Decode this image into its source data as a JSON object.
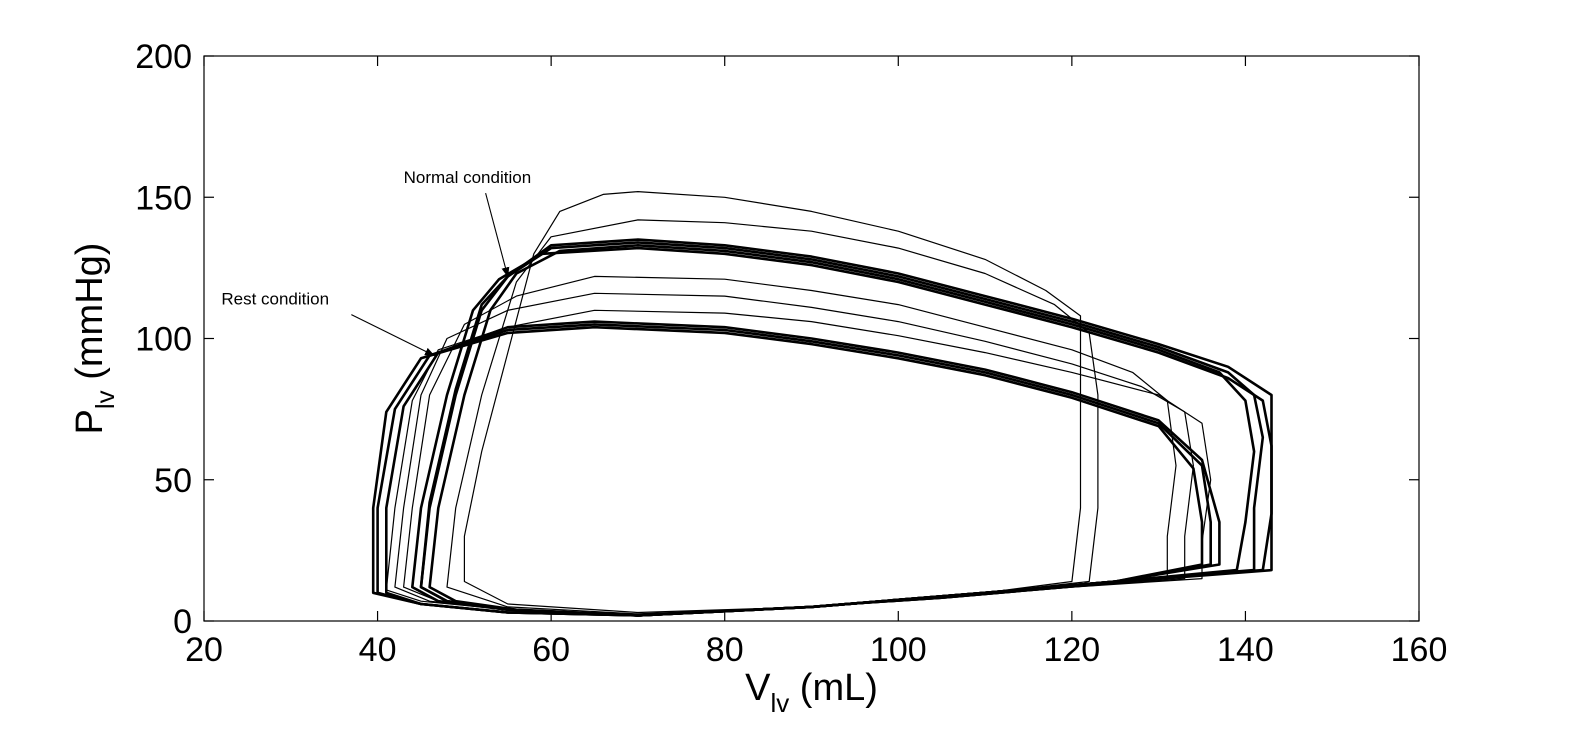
{
  "chart_data": {
    "type": "line",
    "title": "",
    "xlabel": {
      "main": "V",
      "sub": "lv",
      "unit": " (mL)"
    },
    "ylabel": {
      "main": "P",
      "sub": "lv",
      "unit": " (mmHg)"
    },
    "xlim": [
      20,
      160
    ],
    "ylim": [
      0,
      200
    ],
    "xticks": [
      20,
      40,
      60,
      80,
      100,
      120,
      140,
      160
    ],
    "yticks": [
      0,
      50,
      100,
      150,
      200
    ],
    "grid": false,
    "line_color": "#000000",
    "annotations": [
      {
        "text": "Normal condition",
        "text_at": [
          43,
          155
        ],
        "arrow_to": [
          55,
          122
        ]
      },
      {
        "text": "Rest condition",
        "text_at": [
          22,
          112
        ],
        "arrow_to": [
          46.5,
          94
        ]
      }
    ],
    "series": [
      {
        "group": "transient",
        "points": [
          [
            50,
            14
          ],
          [
            50,
            30
          ],
          [
            52,
            60
          ],
          [
            55,
            95
          ],
          [
            58,
            130
          ],
          [
            61,
            145
          ],
          [
            66,
            151
          ],
          [
            70,
            152
          ],
          [
            80,
            150
          ],
          [
            90,
            145
          ],
          [
            100,
            138
          ],
          [
            110,
            128
          ],
          [
            117,
            117
          ],
          [
            121,
            108
          ],
          [
            121,
            80
          ],
          [
            121,
            40
          ],
          [
            120,
            14
          ],
          [
            110,
            10
          ],
          [
            90,
            5
          ],
          [
            70,
            3
          ],
          [
            55,
            6
          ],
          [
            50,
            14
          ]
        ]
      },
      {
        "group": "transient",
        "points": [
          [
            48,
            12
          ],
          [
            49,
            40
          ],
          [
            52,
            80
          ],
          [
            56,
            120
          ],
          [
            60,
            136
          ],
          [
            70,
            142
          ],
          [
            80,
            141
          ],
          [
            90,
            138
          ],
          [
            100,
            132
          ],
          [
            110,
            123
          ],
          [
            118,
            112
          ],
          [
            122,
            102
          ],
          [
            123,
            80
          ],
          [
            123,
            40
          ],
          [
            122,
            14
          ],
          [
            110,
            10
          ],
          [
            90,
            5
          ],
          [
            70,
            2.5
          ],
          [
            55,
            5
          ],
          [
            48,
            12
          ]
        ]
      },
      {
        "group": "normal-band",
        "points": [
          [
            45,
            12
          ],
          [
            46,
            40
          ],
          [
            49,
            80
          ],
          [
            52,
            110
          ],
          [
            55,
            122
          ],
          [
            60,
            132
          ],
          [
            70,
            134
          ],
          [
            80,
            132
          ],
          [
            90,
            128
          ],
          [
            100,
            122
          ],
          [
            110,
            114
          ],
          [
            120,
            106
          ],
          [
            130,
            97
          ],
          [
            138,
            88
          ],
          [
            141,
            80
          ],
          [
            142,
            65
          ],
          [
            141,
            40
          ],
          [
            141,
            18
          ],
          [
            125,
            14
          ],
          [
            110,
            10
          ],
          [
            90,
            5
          ],
          [
            70,
            2
          ],
          [
            55,
            4
          ],
          [
            48,
            7
          ],
          [
            45,
            12
          ]
        ]
      },
      {
        "group": "normal-band",
        "points": [
          [
            46,
            12
          ],
          [
            47,
            40
          ],
          [
            50,
            80
          ],
          [
            53,
            110
          ],
          [
            56,
            123
          ],
          [
            61,
            131
          ],
          [
            70,
            133
          ],
          [
            80,
            131
          ],
          [
            90,
            127
          ],
          [
            100,
            121
          ],
          [
            110,
            113
          ],
          [
            120,
            105
          ],
          [
            130,
            96
          ],
          [
            137,
            88
          ],
          [
            140,
            78
          ],
          [
            141,
            60
          ],
          [
            140,
            35
          ],
          [
            139,
            18
          ],
          [
            125,
            14
          ],
          [
            110,
            10
          ],
          [
            90,
            5
          ],
          [
            70,
            2
          ],
          [
            56,
            4
          ],
          [
            49,
            7
          ],
          [
            46,
            12
          ]
        ]
      },
      {
        "group": "normal-band",
        "points": [
          [
            44,
            12
          ],
          [
            45,
            40
          ],
          [
            48,
            80
          ],
          [
            51,
            110
          ],
          [
            54,
            121
          ],
          [
            59,
            130
          ],
          [
            70,
            132
          ],
          [
            80,
            130
          ],
          [
            90,
            126
          ],
          [
            100,
            120
          ],
          [
            110,
            112
          ],
          [
            120,
            104
          ],
          [
            130,
            95
          ],
          [
            138,
            86
          ],
          [
            142,
            78
          ],
          [
            143,
            62
          ],
          [
            143,
            38
          ],
          [
            142,
            18
          ],
          [
            125,
            14
          ],
          [
            110,
            10
          ],
          [
            90,
            5
          ],
          [
            70,
            2
          ],
          [
            55,
            4
          ],
          [
            47,
            7
          ],
          [
            44,
            12
          ]
        ]
      },
      {
        "group": "normal-band",
        "points": [
          [
            45,
            12
          ],
          [
            46,
            42
          ],
          [
            49,
            82
          ],
          [
            52,
            112
          ],
          [
            55,
            122
          ],
          [
            60,
            133
          ],
          [
            70,
            135
          ],
          [
            80,
            133
          ],
          [
            90,
            129
          ],
          [
            100,
            123
          ],
          [
            110,
            115
          ],
          [
            120,
            107
          ],
          [
            130,
            98
          ],
          [
            138,
            90
          ],
          [
            143,
            80
          ],
          [
            143,
            65
          ],
          [
            143,
            40
          ],
          [
            143,
            18
          ],
          [
            126,
            14
          ],
          [
            110,
            10
          ],
          [
            90,
            5
          ],
          [
            70,
            2
          ],
          [
            55,
            4
          ],
          [
            48,
            7
          ],
          [
            45,
            12
          ]
        ]
      },
      {
        "group": "intermediate",
        "points": [
          [
            43,
            12
          ],
          [
            44,
            40
          ],
          [
            46,
            80
          ],
          [
            50,
            105
          ],
          [
            56,
            115
          ],
          [
            65,
            122
          ],
          [
            80,
            121
          ],
          [
            90,
            117
          ],
          [
            100,
            112
          ],
          [
            110,
            104
          ],
          [
            120,
            96
          ],
          [
            127,
            88
          ],
          [
            131,
            78
          ],
          [
            132,
            55
          ],
          [
            131,
            30
          ],
          [
            131,
            15
          ],
          [
            120,
            12
          ],
          [
            105,
            8
          ],
          [
            90,
            5
          ],
          [
            70,
            2
          ],
          [
            55,
            4
          ],
          [
            47,
            7
          ],
          [
            43,
            12
          ]
        ]
      },
      {
        "group": "intermediate",
        "points": [
          [
            42,
            12
          ],
          [
            43,
            40
          ],
          [
            45,
            80
          ],
          [
            48,
            100
          ],
          [
            55,
            110
          ],
          [
            65,
            116
          ],
          [
            80,
            115
          ],
          [
            90,
            111
          ],
          [
            100,
            106
          ],
          [
            110,
            99
          ],
          [
            120,
            91
          ],
          [
            128,
            83
          ],
          [
            133,
            74
          ],
          [
            134,
            55
          ],
          [
            133,
            30
          ],
          [
            133,
            15
          ],
          [
            120,
            12
          ],
          [
            105,
            8
          ],
          [
            90,
            5
          ],
          [
            70,
            2
          ],
          [
            55,
            4
          ],
          [
            46,
            7
          ],
          [
            42,
            12
          ]
        ]
      },
      {
        "group": "intermediate",
        "points": [
          [
            41,
            11
          ],
          [
            42,
            40
          ],
          [
            44,
            78
          ],
          [
            47,
            96
          ],
          [
            55,
            104
          ],
          [
            65,
            110
          ],
          [
            80,
            109
          ],
          [
            90,
            106
          ],
          [
            100,
            101
          ],
          [
            110,
            95
          ],
          [
            120,
            88
          ],
          [
            130,
            80
          ],
          [
            135,
            70
          ],
          [
            136,
            50
          ],
          [
            135,
            28
          ],
          [
            135,
            15
          ],
          [
            120,
            12
          ],
          [
            105,
            8
          ],
          [
            90,
            5
          ],
          [
            70,
            2
          ],
          [
            55,
            4
          ],
          [
            45,
            7
          ],
          [
            41,
            11
          ]
        ]
      },
      {
        "group": "rest-band",
        "points": [
          [
            40,
            10
          ],
          [
            40,
            40
          ],
          [
            42,
            75
          ],
          [
            46,
            94
          ],
          [
            55,
            103
          ],
          [
            65,
            105
          ],
          [
            80,
            103
          ],
          [
            90,
            99
          ],
          [
            100,
            94
          ],
          [
            110,
            88
          ],
          [
            120,
            80
          ],
          [
            130,
            70
          ],
          [
            135,
            55
          ],
          [
            136,
            35
          ],
          [
            136,
            20
          ],
          [
            125,
            14
          ],
          [
            110,
            10
          ],
          [
            90,
            5
          ],
          [
            70,
            2
          ],
          [
            55,
            3
          ],
          [
            45,
            6
          ],
          [
            40,
            10
          ]
        ]
      },
      {
        "group": "rest-band",
        "points": [
          [
            41,
            10
          ],
          [
            41,
            40
          ],
          [
            43,
            76
          ],
          [
            47,
            95
          ],
          [
            55,
            104
          ],
          [
            65,
            106
          ],
          [
            80,
            104
          ],
          [
            90,
            100
          ],
          [
            100,
            95
          ],
          [
            110,
            89
          ],
          [
            120,
            81
          ],
          [
            130,
            71
          ],
          [
            135,
            57
          ],
          [
            137,
            35
          ],
          [
            137,
            20
          ],
          [
            125,
            14
          ],
          [
            110,
            10
          ],
          [
            90,
            5
          ],
          [
            70,
            2
          ],
          [
            55,
            3
          ],
          [
            45,
            6
          ],
          [
            41,
            10
          ]
        ]
      },
      {
        "group": "rest-band",
        "points": [
          [
            39.5,
            10
          ],
          [
            39.5,
            40
          ],
          [
            41,
            74
          ],
          [
            45,
            93
          ],
          [
            55,
            102
          ],
          [
            65,
            104
          ],
          [
            80,
            102
          ],
          [
            90,
            98
          ],
          [
            100,
            93
          ],
          [
            110,
            87
          ],
          [
            120,
            79
          ],
          [
            130,
            69
          ],
          [
            134,
            54
          ],
          [
            135,
            35
          ],
          [
            135,
            20
          ],
          [
            125,
            14
          ],
          [
            110,
            10
          ],
          [
            90,
            5
          ],
          [
            70,
            2
          ],
          [
            55,
            3
          ],
          [
            45,
            6
          ],
          [
            39.5,
            10
          ]
        ]
      }
    ]
  }
}
